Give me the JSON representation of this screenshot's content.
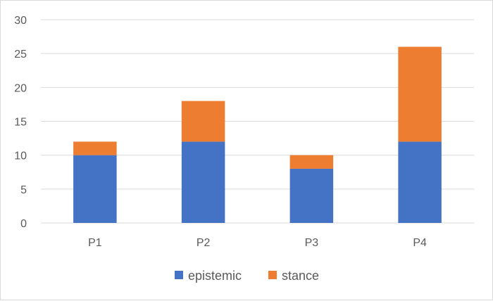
{
  "chart_data": {
    "type": "bar",
    "stacked": true,
    "title": "",
    "xlabel": "",
    "ylabel": "",
    "categories": [
      "P1",
      "P2",
      "P3",
      "P4"
    ],
    "series": [
      {
        "name": "epistemic",
        "values": [
          10,
          12,
          8,
          12
        ],
        "color": "#4472c4"
      },
      {
        "name": "stance",
        "values": [
          2,
          6,
          2,
          14
        ],
        "color": "#ed7d31"
      }
    ],
    "ylim": [
      0,
      30
    ],
    "yticks": [
      0,
      5,
      10,
      15,
      20,
      25,
      30
    ],
    "grid": true,
    "legend_position": "bottom"
  }
}
